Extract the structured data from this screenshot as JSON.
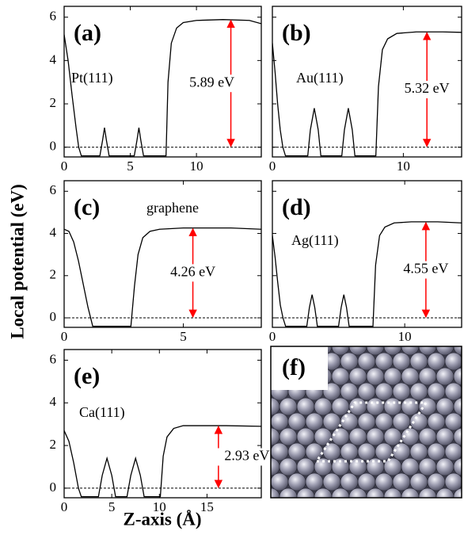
{
  "figure": {
    "ylabel": "Local potential (eV)",
    "xlabel": "Z-axis (Å)"
  },
  "chart_data": [
    {
      "type": "line",
      "panel_label": "(a)",
      "material": "Pt(111)",
      "x": [
        0,
        0.3,
        0.6,
        0.9,
        1.1,
        1.3,
        2.7,
        2.9,
        3.05,
        3.2,
        3.4,
        5.3,
        5.5,
        5.65,
        5.8,
        6.0,
        7.7,
        7.85,
        8.1,
        8.5,
        9,
        10,
        12,
        14,
        14.9
      ],
      "series": [
        {
          "color": "#000000",
          "values": [
            5.2,
            4.0,
            2.4,
            0.9,
            0,
            -0.4,
            -0.4,
            0.3,
            0.9,
            0.3,
            -0.4,
            -0.4,
            0.3,
            0.9,
            0.3,
            -0.4,
            -0.4,
            3.0,
            4.8,
            5.5,
            5.75,
            5.85,
            5.89,
            5.85,
            5.7
          ]
        }
      ],
      "xlim": [
        0,
        14.9
      ],
      "ylim": [
        -0.45,
        6.5
      ],
      "xticks": [
        0,
        5,
        10
      ],
      "yticks": [
        0,
        2,
        4,
        6
      ],
      "ytick_labels": true,
      "reference_line": 0,
      "annotation": {
        "value": 5.89,
        "label": "5.89 eV",
        "x": 12.6,
        "color": "#ff0000"
      }
    },
    {
      "type": "line",
      "panel_label": "(b)",
      "material": "Au(111)",
      "x": [
        0,
        0.2,
        0.4,
        0.6,
        0.8,
        1.0,
        2.7,
        2.9,
        3.2,
        3.5,
        3.7,
        5.3,
        5.5,
        5.8,
        6.1,
        6.3,
        7.9,
        8.1,
        8.4,
        8.8,
        9.5,
        11,
        13,
        14.45
      ],
      "series": [
        {
          "color": "#000000",
          "values": [
            4.8,
            3.5,
            2.0,
            0.8,
            0,
            -0.4,
            -0.4,
            0.8,
            1.8,
            0.8,
            -0.4,
            -0.4,
            0.8,
            1.8,
            0.8,
            -0.4,
            -0.4,
            2.8,
            4.5,
            5.0,
            5.25,
            5.32,
            5.32,
            5.3
          ]
        }
      ],
      "xlim": [
        0,
        14.45
      ],
      "ylim": [
        -0.45,
        6.5
      ],
      "xticks": [
        0,
        10
      ],
      "yticks": [
        0,
        2,
        4,
        6
      ],
      "ytick_labels": false,
      "reference_line": 0,
      "annotation": {
        "value": 5.32,
        "label": "5.32 eV",
        "x": 11.8,
        "color": "#ff0000"
      }
    },
    {
      "type": "line",
      "panel_label": "(c)",
      "material": "graphene",
      "x": [
        0,
        0.2,
        0.4,
        0.6,
        0.8,
        1.0,
        1.2,
        2.8,
        2.95,
        3.1,
        3.3,
        3.6,
        4.0,
        5,
        6,
        7,
        8.27
      ],
      "series": [
        {
          "color": "#000000",
          "values": [
            4.2,
            4.1,
            3.6,
            2.7,
            1.6,
            0.5,
            -0.4,
            -0.4,
            1.5,
            3.0,
            3.8,
            4.1,
            4.2,
            4.26,
            4.26,
            4.26,
            4.2
          ]
        }
      ],
      "xlim": [
        0,
        8.27
      ],
      "ylim": [
        -0.45,
        6.5
      ],
      "xticks": [
        0,
        5
      ],
      "yticks": [
        0,
        2,
        4,
        6
      ],
      "ytick_labels": true,
      "reference_line": 0,
      "annotation": {
        "value": 4.26,
        "label": "4.26 eV",
        "x": 5.4,
        "color": "#ff0000"
      }
    },
    {
      "type": "line",
      "panel_label": "(d)",
      "material": "Ag(111)",
      "x": [
        0,
        0.2,
        0.4,
        0.6,
        0.8,
        1.0,
        2.6,
        2.8,
        3.0,
        3.2,
        3.4,
        5.0,
        5.2,
        5.4,
        5.6,
        5.8,
        7.6,
        7.8,
        8.1,
        8.5,
        9.2,
        10.5,
        12.5,
        14.3
      ],
      "series": [
        {
          "color": "#000000",
          "values": [
            3.9,
            2.9,
            1.7,
            0.6,
            0,
            -0.4,
            -0.4,
            0.5,
            1.1,
            0.5,
            -0.4,
            -0.4,
            0.5,
            1.1,
            0.5,
            -0.4,
            -0.4,
            2.5,
            3.9,
            4.3,
            4.5,
            4.55,
            4.55,
            4.5
          ]
        }
      ],
      "xlim": [
        0,
        14.3
      ],
      "ylim": [
        -0.45,
        6.5
      ],
      "xticks": [
        0,
        10
      ],
      "yticks": [
        0,
        2,
        4,
        6
      ],
      "ytick_labels": false,
      "reference_line": 0,
      "annotation": {
        "value": 4.55,
        "label": "4.55 eV",
        "x": 11.6,
        "color": "#ff0000"
      }
    },
    {
      "type": "line",
      "panel_label": "(e)",
      "material": "Ca(111)",
      "x": [
        0,
        0.5,
        1.0,
        1.5,
        1.8,
        3.6,
        4.0,
        4.5,
        5.0,
        5.4,
        6.6,
        7.0,
        7.5,
        8.0,
        8.4,
        10.1,
        10.4,
        10.8,
        11.5,
        12.5,
        14,
        17,
        20.7
      ],
      "series": [
        {
          "color": "#000000",
          "values": [
            2.7,
            2.2,
            1.2,
            0,
            -0.4,
            -0.4,
            0.6,
            1.4,
            0.6,
            -0.4,
            -0.4,
            0.6,
            1.4,
            0.6,
            -0.4,
            -0.4,
            1.5,
            2.4,
            2.8,
            2.93,
            2.93,
            2.93,
            2.9
          ]
        }
      ],
      "xlim": [
        0,
        20.7
      ],
      "ylim": [
        -0.45,
        6.5
      ],
      "xticks": [
        0,
        5,
        10,
        15
      ],
      "yticks": [
        0,
        2,
        4,
        6
      ],
      "ytick_labels": true,
      "reference_line": 0,
      "annotation": {
        "value": 2.93,
        "label": "2.93 eV",
        "x": 16.2,
        "color": "#ff0000"
      }
    }
  ],
  "image_panel": {
    "label": "(f)"
  }
}
